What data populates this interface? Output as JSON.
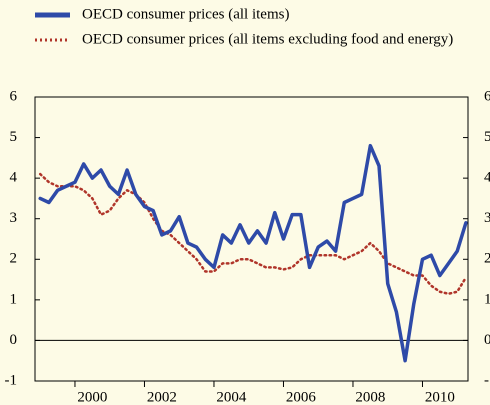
{
  "chart_data": {
    "type": "line",
    "x": [
      1999.0,
      1999.25,
      1999.5,
      1999.75,
      2000.0,
      2000.25,
      2000.5,
      2000.75,
      2001.0,
      2001.25,
      2001.5,
      2001.75,
      2002.0,
      2002.25,
      2002.5,
      2002.75,
      2003.0,
      2003.25,
      2003.5,
      2003.75,
      2004.0,
      2004.25,
      2004.5,
      2004.75,
      2005.0,
      2005.25,
      2005.5,
      2005.75,
      2006.0,
      2006.25,
      2006.5,
      2006.75,
      2007.0,
      2007.25,
      2007.5,
      2007.75,
      2008.0,
      2008.25,
      2008.5,
      2008.75,
      2009.0,
      2009.25,
      2009.5,
      2009.75,
      2010.0,
      2010.25,
      2010.5,
      2010.75,
      2011.0,
      2011.25
    ],
    "series": [
      {
        "name": "OECD consumer prices (all items)",
        "color": "#2e4aa8",
        "style": "solid",
        "values": [
          3.5,
          3.4,
          3.7,
          3.8,
          3.9,
          4.35,
          4.0,
          4.2,
          3.8,
          3.6,
          4.2,
          3.6,
          3.3,
          3.2,
          2.6,
          2.7,
          3.05,
          2.4,
          2.3,
          2.0,
          1.8,
          2.6,
          2.4,
          2.85,
          2.4,
          2.7,
          2.4,
          3.15,
          2.5,
          3.1,
          3.1,
          1.8,
          2.3,
          2.45,
          2.2,
          3.4,
          3.5,
          3.6,
          4.8,
          4.3,
          1.4,
          0.7,
          -0.5,
          0.9,
          2.0,
          2.1,
          1.6,
          1.9,
          2.2,
          2.9
        ]
      },
      {
        "name": "OECD consumer prices (all items excluding food and energy)",
        "color": "#b0352a",
        "style": "dotted",
        "values": [
          4.1,
          3.9,
          3.8,
          3.8,
          3.8,
          3.7,
          3.5,
          3.1,
          3.2,
          3.5,
          3.7,
          3.6,
          3.4,
          3.0,
          2.7,
          2.6,
          2.4,
          2.2,
          2.0,
          1.7,
          1.7,
          1.9,
          1.9,
          2.0,
          2.0,
          1.9,
          1.8,
          1.8,
          1.75,
          1.8,
          2.0,
          2.1,
          2.1,
          2.1,
          2.1,
          2.0,
          2.1,
          2.2,
          2.4,
          2.2,
          1.9,
          1.8,
          1.7,
          1.6,
          1.6,
          1.35,
          1.2,
          1.15,
          1.2,
          1.55
        ]
      }
    ],
    "xlim": [
      1998.85,
      2011.31
    ],
    "xticks": [
      2000,
      2002,
      2004,
      2006,
      2008,
      2010
    ],
    "ylim": [
      -1,
      6
    ],
    "yticks": [
      -1,
      0,
      1,
      2,
      3,
      4,
      5,
      6
    ],
    "zero_line": true
  }
}
